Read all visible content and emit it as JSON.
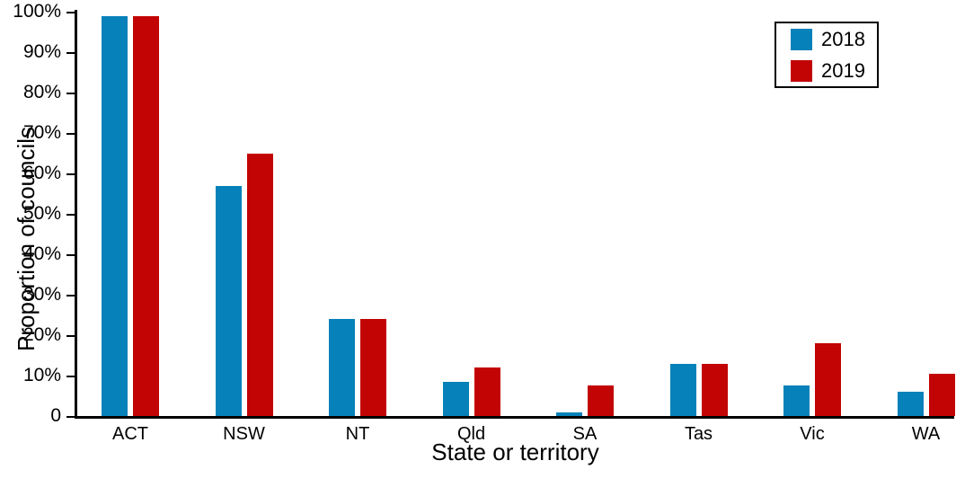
{
  "chart_data": {
    "type": "bar",
    "title": "",
    "categories": [
      "ACT",
      "NSW",
      "NT",
      "Qld",
      "SA",
      "Tas",
      "Vic",
      "WA"
    ],
    "series": [
      {
        "name": "2018",
        "color": "#0781ba",
        "values": [
          99,
          57,
          24,
          8.5,
          1,
          13,
          7.5,
          6
        ]
      },
      {
        "name": "2019",
        "color": "#c20404",
        "values": [
          99,
          65,
          24,
          12,
          7.5,
          13,
          18,
          10.5
        ]
      }
    ],
    "xlabel": "State or territory",
    "ylabel": "Proportion of councils",
    "ylim": [
      0,
      100
    ],
    "ytick_step": 10,
    "ytick_suffix": "%",
    "ytick_zero_label": "0",
    "legend_position": "top-right",
    "grid": false,
    "axis_color": "#000000",
    "background_color": "#ffffff"
  }
}
